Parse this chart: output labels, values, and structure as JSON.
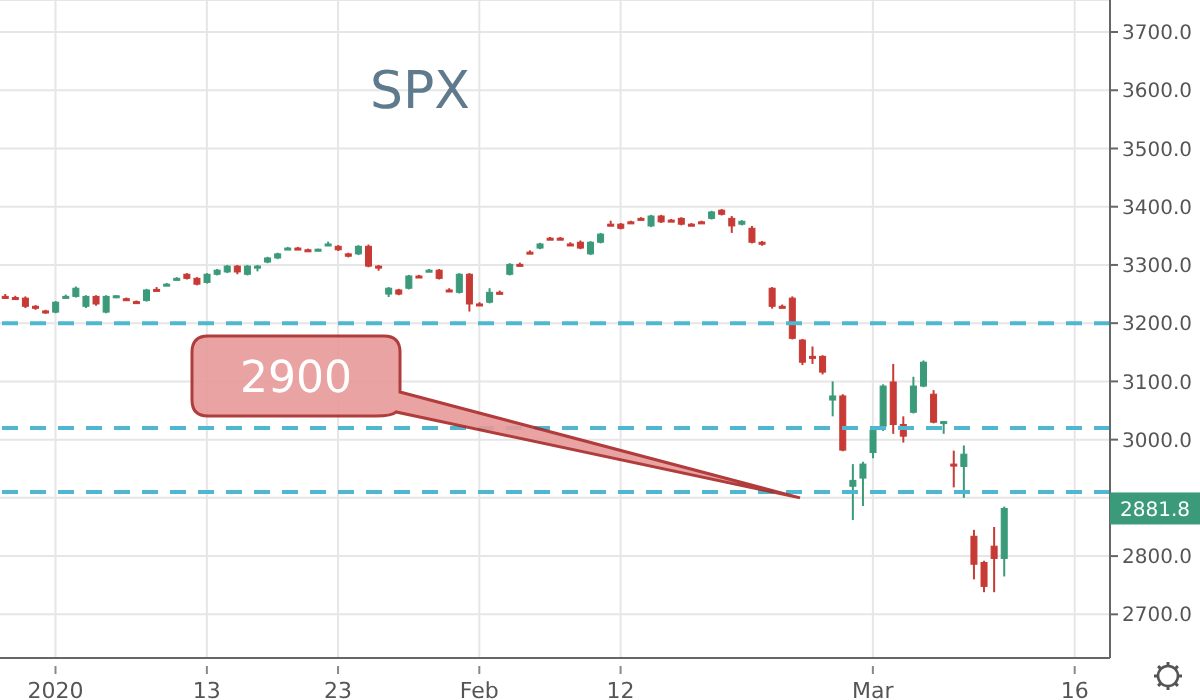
{
  "chart_data": {
    "type": "candlestick",
    "title": "SPX",
    "categories": [
      null,
      null,
      null,
      null,
      null,
      "2020",
      null,
      null,
      null,
      null,
      null,
      null,
      null,
      null,
      null,
      null,
      null,
      null,
      null,
      null,
      "13",
      null,
      null,
      null,
      null,
      null,
      null,
      null,
      null,
      null,
      null,
      null,
      null,
      "23",
      null,
      null,
      null,
      null,
      null,
      null,
      null,
      null,
      null,
      null,
      null,
      null,
      null,
      "Feb",
      null,
      null,
      null,
      null,
      null,
      null,
      null,
      null,
      null,
      null,
      null,
      null,
      null,
      "12",
      null,
      null,
      null,
      null,
      null,
      null,
      null,
      null,
      null,
      null,
      null,
      null,
      null,
      null,
      null,
      null,
      null,
      null,
      null,
      null,
      null,
      null,
      null,
      null,
      "Mar",
      null,
      null,
      null,
      null,
      null,
      null,
      null,
      null,
      null,
      null,
      null,
      null,
      null,
      null,
      null,
      null,
      null,
      null,
      null,
      "16",
      null,
      null,
      null
    ],
    "ohlc": [
      [
        3246,
        3250,
        3242,
        3245
      ],
      [
        3244,
        3247,
        3240,
        3243
      ],
      [
        3243,
        3246,
        3226,
        3229
      ],
      [
        3229,
        3231,
        3223,
        3226
      ],
      [
        3221,
        3223,
        3216,
        3219
      ],
      [
        3219,
        3238,
        3217,
        3236
      ],
      [
        3245,
        3249,
        3243,
        3246
      ],
      [
        3246,
        3263,
        3244,
        3260
      ],
      [
        3229,
        3248,
        3226,
        3246
      ],
      [
        3246,
        3248,
        3230,
        3233
      ],
      [
        3219,
        3248,
        3217,
        3246
      ],
      [
        3245,
        3248,
        3243,
        3247
      ],
      [
        3242,
        3244,
        3239,
        3241
      ],
      [
        3237,
        3239,
        3234,
        3236
      ],
      [
        3239,
        3259,
        3237,
        3257
      ],
      [
        3258,
        3262,
        3255,
        3257
      ],
      [
        3266,
        3269,
        3264,
        3267
      ],
      [
        3276,
        3279,
        3274,
        3277
      ],
      [
        3284,
        3286,
        3275,
        3277
      ],
      [
        3277,
        3279,
        3265,
        3267
      ],
      [
        3270,
        3286,
        3268,
        3284
      ],
      [
        3284,
        3293,
        3282,
        3291
      ],
      [
        3288,
        3300,
        3286,
        3298
      ],
      [
        3298,
        3300,
        3284,
        3288
      ],
      [
        3284,
        3300,
        3282,
        3298
      ],
      [
        3297,
        3300,
        3289,
        3298
      ],
      [
        3305,
        3314,
        3303,
        3312
      ],
      [
        3312,
        3321,
        3310,
        3319
      ],
      [
        3328,
        3331,
        3327,
        3329
      ],
      [
        3329,
        3331,
        3327,
        3328
      ],
      [
        3326,
        3328,
        3324,
        3325
      ],
      [
        3326,
        3328,
        3324,
        3327
      ],
      [
        3335,
        3340,
        3333,
        3336
      ],
      [
        3332,
        3334,
        3324,
        3326
      ],
      [
        3319,
        3321,
        3313,
        3315
      ],
      [
        3319,
        3334,
        3317,
        3332
      ],
      [
        3332,
        3335,
        3296,
        3298
      ],
      [
        3298,
        3300,
        3290,
        3297
      ],
      [
        3250,
        3262,
        3245,
        3260
      ],
      [
        3257,
        3259,
        3248,
        3250
      ],
      [
        3260,
        3283,
        3258,
        3281
      ],
      [
        3281,
        3283,
        3278,
        3280
      ],
      [
        3290,
        3293,
        3288,
        3291
      ],
      [
        3291,
        3293,
        3275,
        3277
      ],
      [
        3257,
        3260,
        3254,
        3256
      ],
      [
        3253,
        3286,
        3251,
        3284
      ],
      [
        3284,
        3286,
        3220,
        3233
      ],
      [
        3233,
        3236,
        3230,
        3232
      ],
      [
        3236,
        3260,
        3234,
        3253
      ],
      [
        3253,
        3256,
        3250,
        3252
      ],
      [
        3284,
        3303,
        3282,
        3301
      ],
      [
        3301,
        3304,
        3298,
        3300
      ],
      [
        3322,
        3325,
        3319,
        3321
      ],
      [
        3329,
        3338,
        3327,
        3336
      ],
      [
        3346,
        3348,
        3344,
        3345
      ],
      [
        3346,
        3348,
        3344,
        3345
      ],
      [
        3336,
        3339,
        3333,
        3335
      ],
      [
        3339,
        3342,
        3327,
        3329
      ],
      [
        3319,
        3341,
        3317,
        3339
      ],
      [
        3339,
        3355,
        3337,
        3353
      ],
      [
        3370,
        3376,
        3368,
        3369
      ],
      [
        3370,
        3372,
        3361,
        3363
      ],
      [
        3374,
        3376,
        3372,
        3373
      ],
      [
        3380,
        3382,
        3378,
        3379
      ],
      [
        3367,
        3386,
        3365,
        3384
      ],
      [
        3384,
        3386,
        3372,
        3374
      ],
      [
        3377,
        3379,
        3375,
        3376
      ],
      [
        3380,
        3382,
        3368,
        3370
      ],
      [
        3370,
        3372,
        3368,
        3369
      ],
      [
        3374,
        3376,
        3372,
        3373
      ],
      [
        3380,
        3393,
        3378,
        3391
      ],
      [
        3394,
        3396,
        3385,
        3387
      ],
      [
        3380,
        3384,
        3355,
        3367
      ],
      [
        3370,
        3377,
        3368,
        3375
      ],
      [
        3363,
        3367,
        3337,
        3339
      ],
      [
        3339,
        3341,
        3333,
        3338
      ],
      [
        3260,
        3262,
        3225,
        3229
      ],
      [
        3229,
        3232,
        3226,
        3228
      ],
      [
        3243,
        3246,
        3172,
        3174
      ],
      [
        3171,
        3173,
        3128,
        3133
      ],
      [
        3143,
        3160,
        3130,
        3142
      ],
      [
        3143,
        3145,
        3112,
        3116
      ],
      [
        3068,
        3100,
        3040,
        3075
      ],
      [
        3075,
        3078,
        2980,
        2982
      ],
      [
        2920,
        2958,
        2862,
        2930
      ],
      [
        2934,
        2962,
        2886,
        2958
      ],
      [
        2978,
        3020,
        2968,
        3016
      ],
      [
        3023,
        3095,
        3015,
        3092
      ],
      [
        3099,
        3130,
        3010,
        3026
      ],
      [
        3026,
        3040,
        2995,
        3006
      ],
      [
        3047,
        3108,
        3045,
        3092
      ],
      [
        3092,
        3136,
        3090,
        3133
      ],
      [
        3078,
        3085,
        3028,
        3030
      ],
      [
        3030,
        3032,
        3010,
        3031
      ],
      [
        2958,
        2981,
        2918,
        2957
      ],
      [
        2954,
        2990,
        2900,
        2975
      ],
      [
        2834,
        2845,
        2760,
        2786
      ],
      [
        2789,
        2792,
        2738,
        2748
      ],
      [
        2817,
        2850,
        2738,
        2796
      ],
      [
        2796,
        2885,
        2765,
        2881.8
      ],
      null,
      null,
      null,
      null,
      null,
      null,
      null,
      null,
      null,
      null
    ],
    "colors": [
      "#c73a35",
      "#c73a35",
      "#c73a35",
      "#c73a35",
      "#c73a35",
      "#3a9a79",
      "#3a9a79",
      "#3a9a79",
      "#3a9a79",
      "#c73a35",
      "#3a9a79",
      "#3a9a79",
      "#c73a35",
      "#c73a35",
      "#3a9a79",
      "#c73a35",
      "#3a9a79",
      "#3a9a79",
      "#c73a35",
      "#c73a35",
      "#3a9a79",
      "#3a9a79",
      "#3a9a79",
      "#c73a35",
      "#3a9a79",
      "#3a9a79",
      "#3a9a79",
      "#3a9a79",
      "#3a9a79",
      "#c73a35",
      "#c73a35",
      "#3a9a79",
      "#3a9a79",
      "#c73a35",
      "#c73a35",
      "#3a9a79",
      "#c73a35",
      "#c73a35",
      "#3a9a79",
      "#c73a35",
      "#3a9a79",
      "#c73a35",
      "#3a9a79",
      "#c73a35",
      "#c73a35",
      "#3a9a79",
      "#c73a35",
      "#c73a35",
      "#3a9a79",
      "#c73a35",
      "#3a9a79",
      "#c73a35",
      "#c73a35",
      "#3a9a79",
      "#c73a35",
      "#c73a35",
      "#c73a35",
      "#c73a35",
      "#3a9a79",
      "#3a9a79",
      "#c73a35",
      "#c73a35",
      "#c73a35",
      "#c73a35",
      "#3a9a79",
      "#c73a35",
      "#c73a35",
      "#c73a35",
      "#c73a35",
      "#c73a35",
      "#3a9a79",
      "#c73a35",
      "#c73a35",
      "#3a9a79",
      "#c73a35",
      "#c73a35",
      "#c73a35",
      "#c73a35",
      "#c73a35",
      "#c73a35",
      "#c73a35",
      "#c73a35",
      "#3a9a79",
      "#c73a35",
      "#3a9a79",
      "#3a9a79",
      "#3a9a79",
      "#3a9a79",
      "#c73a35",
      "#c73a35",
      "#3a9a79",
      "#3a9a79",
      "#c73a35",
      "#3a9a79",
      "#c73a35",
      "#3a9a79",
      "#c73a35",
      "#c73a35",
      "#c73a35",
      "#3a9a79",
      null,
      null,
      null,
      null,
      null,
      null,
      null,
      null,
      null,
      null
    ],
    "ylim": [
      2625,
      3755
    ],
    "yticks": [
      {
        "value": 2700,
        "label": "2700.0"
      },
      {
        "value": 2800,
        "label": "2800.0"
      },
      {
        "value": 2900,
        "label": null
      },
      {
        "value": 3000,
        "label": "3000.0"
      },
      {
        "value": 3100,
        "label": "3100.0"
      },
      {
        "value": 3200,
        "label": "3200.0"
      },
      {
        "value": 3300,
        "label": "3300.0"
      },
      {
        "value": 3400,
        "label": "3400.0"
      },
      {
        "value": 3500,
        "label": "3500.0"
      },
      {
        "value": 3600,
        "label": "3600.0"
      },
      {
        "value": 3700,
        "label": "3700.0"
      }
    ],
    "grid": true,
    "ref_lines": [
      {
        "axis": "y",
        "value": 3200,
        "color": "#4fb8d0",
        "line_style": "dashed"
      },
      {
        "axis": "y",
        "value": 3020,
        "color": "#4fb8d0",
        "line_style": "dashed"
      },
      {
        "axis": "y",
        "value": 2910,
        "color": "#4fb8d0",
        "line_style": "dashed"
      }
    ],
    "annotations": [
      {
        "text": "2900",
        "y": 2900
      },
      "2881.8"
    ]
  }
}
